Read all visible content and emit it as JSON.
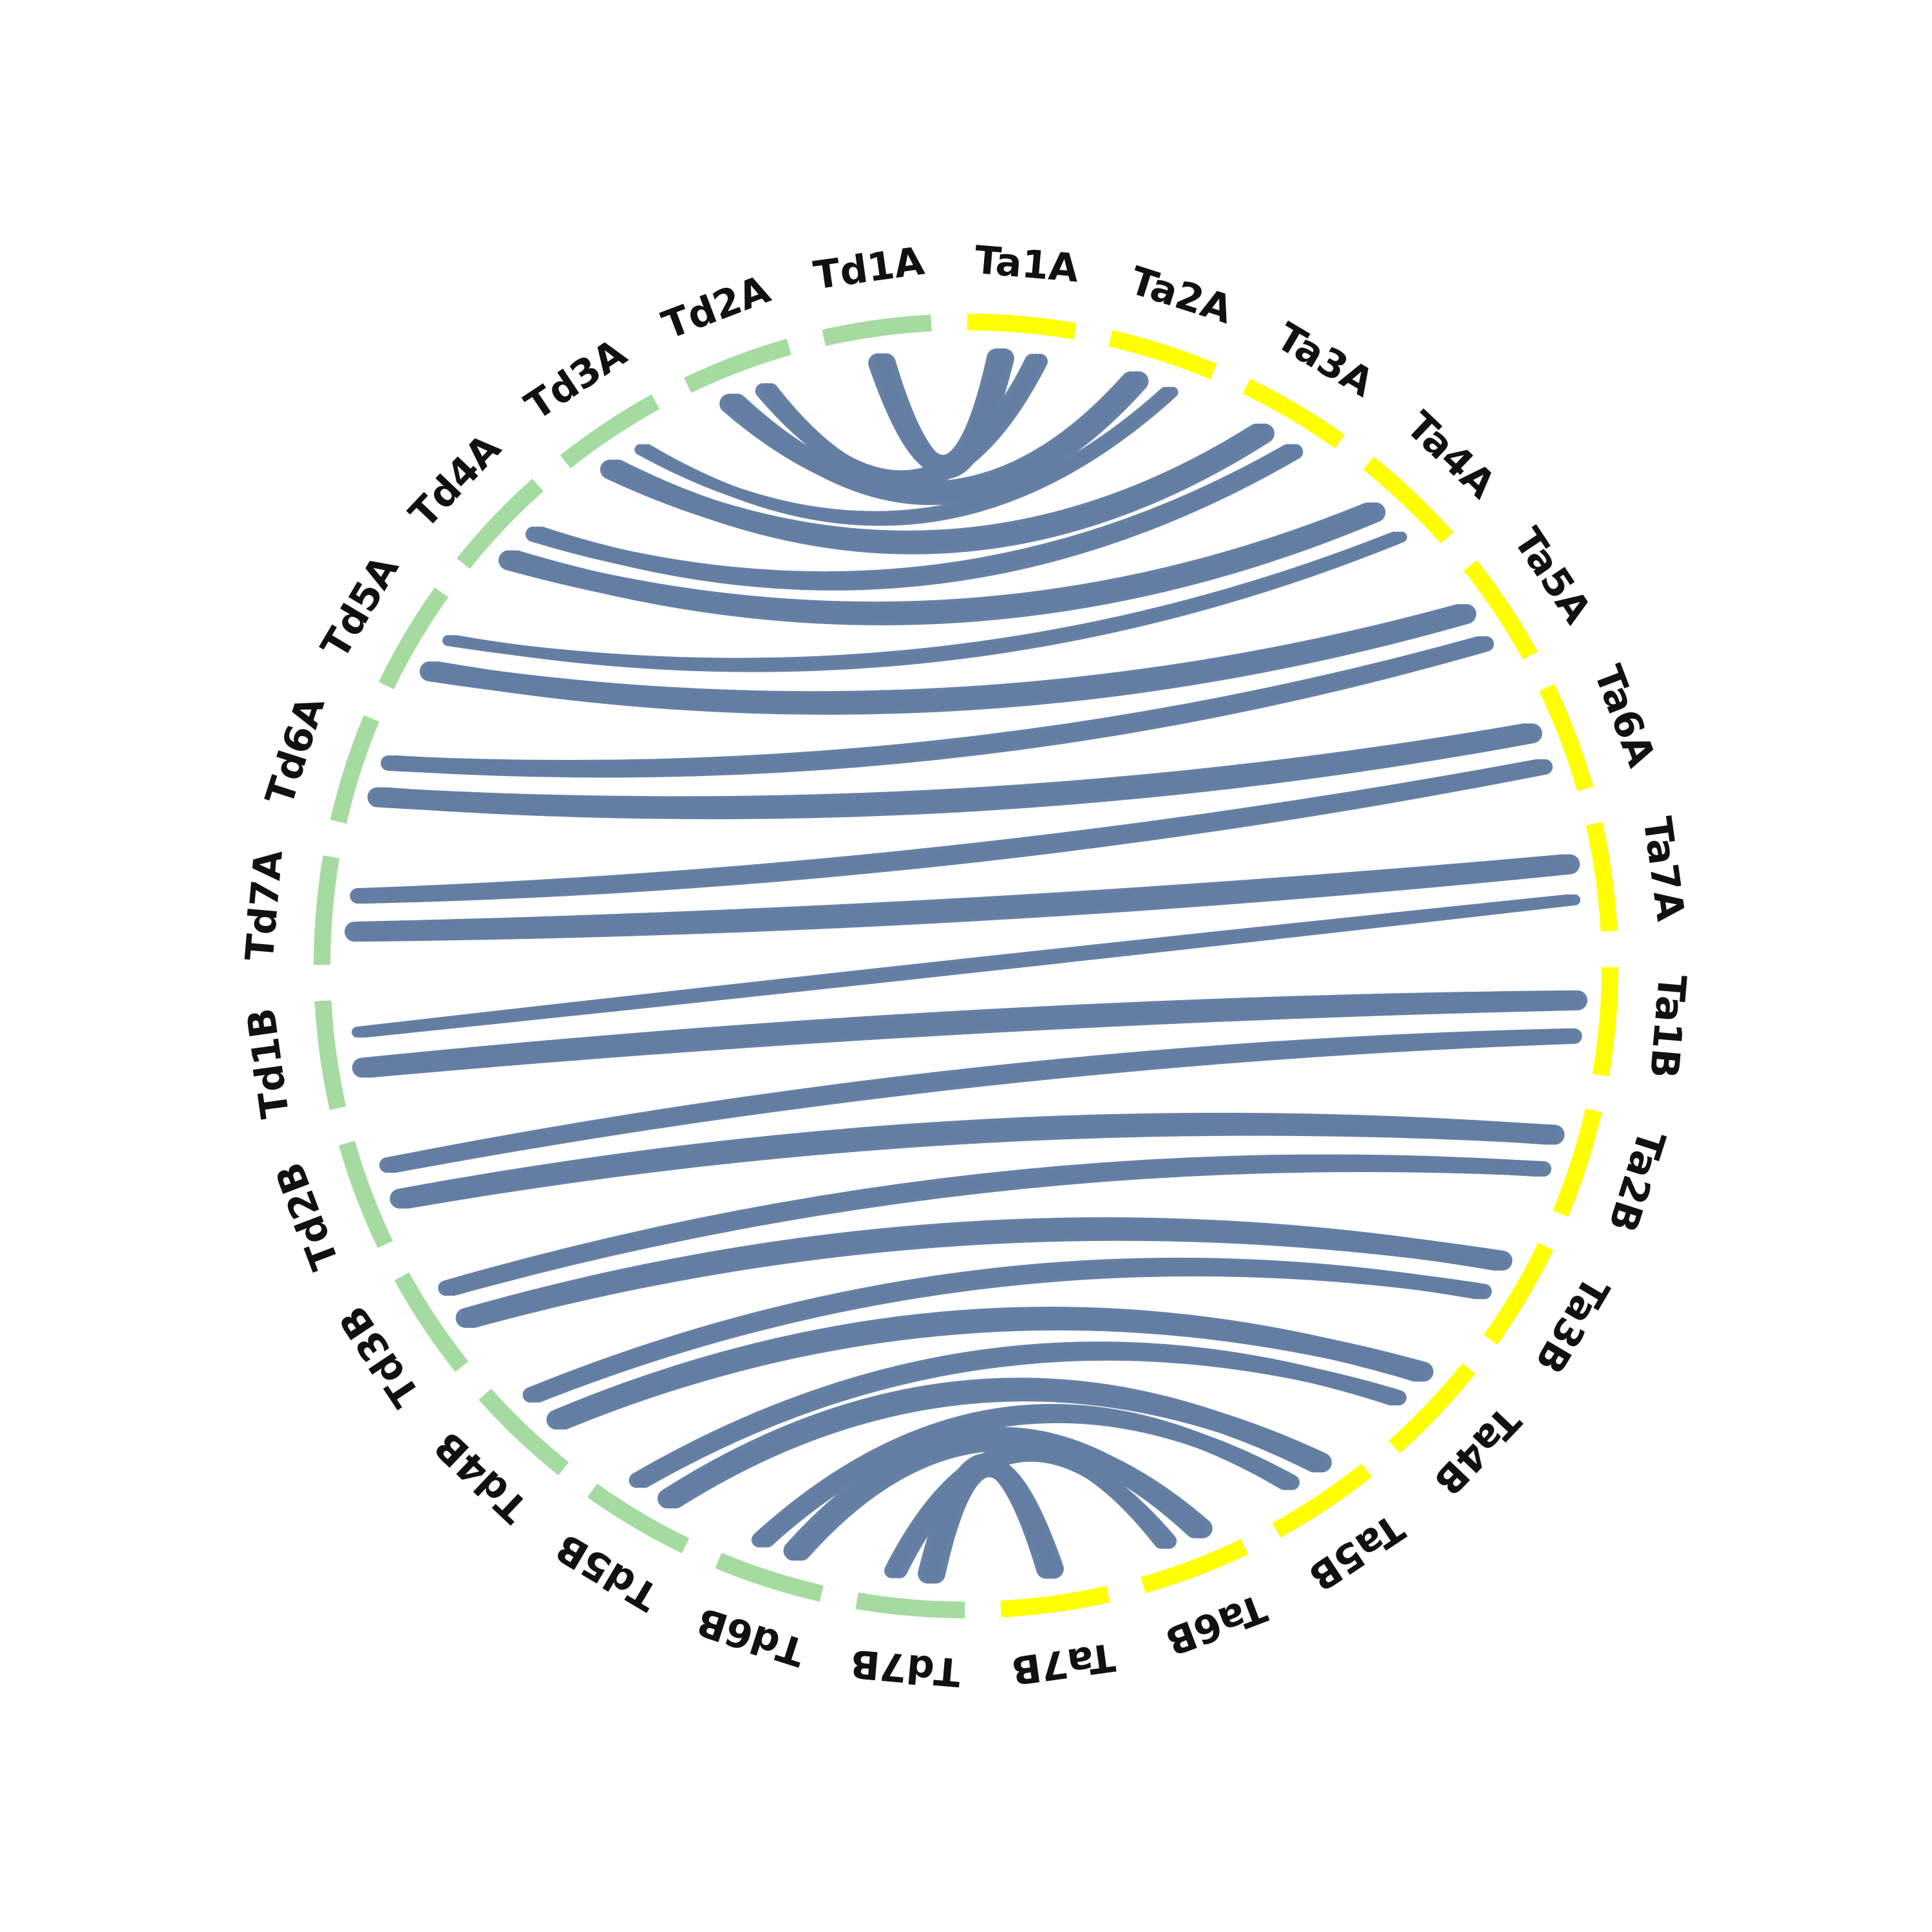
{
  "colors": {
    "td_segment": "#a5dba0",
    "ta_segment": "#ffff00",
    "link": "#647ea3",
    "label": "#111111",
    "background": "#ffffff"
  },
  "segments": [
    {
      "id": "Ta1A",
      "label": "Ta1A",
      "group": "Ta"
    },
    {
      "id": "Ta2A",
      "label": "Ta2A",
      "group": "Ta"
    },
    {
      "id": "Ta3A",
      "label": "Ta3A",
      "group": "Ta"
    },
    {
      "id": "Ta4A",
      "label": "Ta4A",
      "group": "Ta"
    },
    {
      "id": "Ta5A",
      "label": "Ta5A",
      "group": "Ta"
    },
    {
      "id": "Ta6A",
      "label": "Ta6A",
      "group": "Ta"
    },
    {
      "id": "Ta7A",
      "label": "Ta7A",
      "group": "Ta"
    },
    {
      "id": "Ta1B",
      "label": "Ta1B",
      "group": "Ta"
    },
    {
      "id": "Ta2B",
      "label": "Ta2B",
      "group": "Ta"
    },
    {
      "id": "Ta3B",
      "label": "Ta3B",
      "group": "Ta"
    },
    {
      "id": "Ta4B",
      "label": "Ta4B",
      "group": "Ta"
    },
    {
      "id": "Ta5B",
      "label": "Ta5B",
      "group": "Ta"
    },
    {
      "id": "Ta6B",
      "label": "Ta6B",
      "group": "Ta"
    },
    {
      "id": "Ta7B",
      "label": "Ta7B",
      "group": "Ta"
    },
    {
      "id": "Td7B",
      "label": "Td7B",
      "group": "Td"
    },
    {
      "id": "Td6B",
      "label": "Td6B",
      "group": "Td"
    },
    {
      "id": "Td5B",
      "label": "Td5B",
      "group": "Td"
    },
    {
      "id": "Td4B",
      "label": "Td4B",
      "group": "Td"
    },
    {
      "id": "Td3B",
      "label": "Td3B",
      "group": "Td"
    },
    {
      "id": "Td2B",
      "label": "Td2B",
      "group": "Td"
    },
    {
      "id": "Td1B",
      "label": "Td1B",
      "group": "Td"
    },
    {
      "id": "Td7A",
      "label": "Td7A",
      "group": "Td"
    },
    {
      "id": "Td6A",
      "label": "Td6A",
      "group": "Td"
    },
    {
      "id": "Td5A",
      "label": "Td5A",
      "group": "Td"
    },
    {
      "id": "Td4A",
      "label": "Td4A",
      "group": "Td"
    },
    {
      "id": "Td3A",
      "label": "Td3A",
      "group": "Td"
    },
    {
      "id": "Td2A",
      "label": "Td2A",
      "group": "Td"
    },
    {
      "id": "Td1A",
      "label": "Td1A",
      "group": "Td"
    }
  ],
  "links": [
    {
      "from": "Td1A",
      "to": "Ta1A",
      "weight": 3
    },
    {
      "from": "Td2A",
      "to": "Ta2A",
      "weight": 3
    },
    {
      "from": "Td2A",
      "to": "Ta1A",
      "weight": 2
    },
    {
      "from": "Td3A",
      "to": "Ta3A",
      "weight": 3
    },
    {
      "from": "Td3A",
      "to": "Ta2A",
      "weight": 1
    },
    {
      "from": "Td4A",
      "to": "Ta4A",
      "weight": 3
    },
    {
      "from": "Td4A",
      "to": "Ta3A",
      "weight": 2
    },
    {
      "from": "Td5A",
      "to": "Ta5A",
      "weight": 3
    },
    {
      "from": "Td5A",
      "to": "Ta4A",
      "weight": 1
    },
    {
      "from": "Td6A",
      "to": "Ta6A",
      "weight": 3
    },
    {
      "from": "Td6A",
      "to": "Ta5A",
      "weight": 2
    },
    {
      "from": "Td7A",
      "to": "Ta7A",
      "weight": 3
    },
    {
      "from": "Td7A",
      "to": "Ta6A",
      "weight": 2
    },
    {
      "from": "Td1B",
      "to": "Ta1B",
      "weight": 3
    },
    {
      "from": "Td1B",
      "to": "Ta7A",
      "weight": 1
    },
    {
      "from": "Td2B",
      "to": "Ta2B",
      "weight": 3
    },
    {
      "from": "Td2B",
      "to": "Ta1B",
      "weight": 2
    },
    {
      "from": "Td3B",
      "to": "Ta3B",
      "weight": 3
    },
    {
      "from": "Td3B",
      "to": "Ta2B",
      "weight": 2
    },
    {
      "from": "Td4B",
      "to": "Ta4B",
      "weight": 3
    },
    {
      "from": "Td4B",
      "to": "Ta3B",
      "weight": 2
    },
    {
      "from": "Td5B",
      "to": "Ta5B",
      "weight": 3
    },
    {
      "from": "Td5B",
      "to": "Ta4B",
      "weight": 2
    },
    {
      "from": "Td6B",
      "to": "Ta6B",
      "weight": 3
    },
    {
      "from": "Td6B",
      "to": "Ta5B",
      "weight": 2
    },
    {
      "from": "Td7B",
      "to": "Ta7B",
      "weight": 3
    },
    {
      "from": "Td7B",
      "to": "Ta6B",
      "weight": 2
    }
  ]
}
